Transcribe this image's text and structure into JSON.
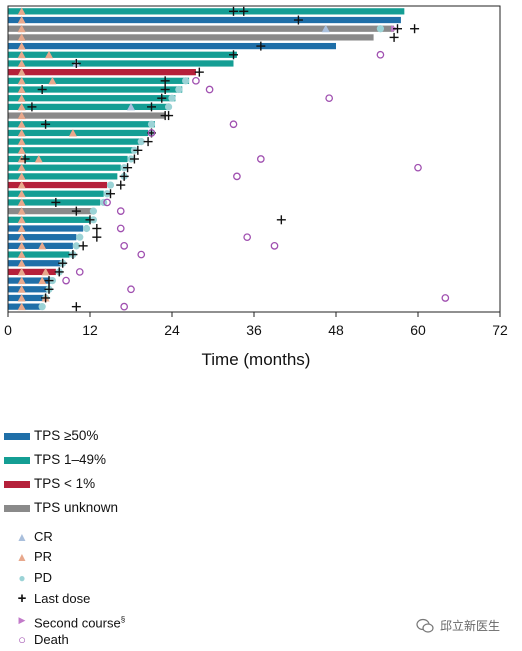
{
  "chart_data": {
    "type": "swimmer",
    "xlabel": "Time (months)",
    "xticks": [
      0,
      12,
      24,
      36,
      48,
      60,
      72
    ],
    "xlim": [
      0,
      72
    ],
    "grid": false,
    "colors": {
      "TPS ≥50%": "#1f6fa8",
      "TPS 1–49%": "#149e94",
      "TPS < 1%": "#b5203a",
      "TPS unknown": "#8a8a8a",
      "CR": "#a9bfdc",
      "PR": "#e8a88c",
      "PD": "#9bd3d6",
      "Last dose": "#111111",
      "Second course": "#c27ac9",
      "Death": "#a050b0"
    },
    "patients": [
      {
        "tps": "TPS 1–49%",
        "duration": 58.0,
        "pr": [
          2.0
        ],
        "last_dose": [
          33.0,
          34.5
        ],
        "death": []
      },
      {
        "tps": "TPS ≥50%",
        "duration": 57.5,
        "pr": [
          2.0
        ],
        "last_dose": [
          42.5
        ],
        "death": []
      },
      {
        "tps": "TPS unknown",
        "duration": 56.5,
        "pr": [
          2.0
        ],
        "cr": [
          46.5
        ],
        "pd": [
          54.5
        ],
        "last_dose": [
          59.5,
          57.0
        ],
        "second_course": [
          56.5
        ],
        "death": []
      },
      {
        "tps": "TPS unknown",
        "duration": 53.5,
        "pr": [
          2.0
        ],
        "last_dose": [
          56.5
        ],
        "death": []
      },
      {
        "tps": "TPS ≥50%",
        "duration": 48.0,
        "pr": [
          2.0
        ],
        "last_dose": [
          37.0
        ],
        "death": []
      },
      {
        "tps": "TPS 1–49%",
        "duration": 33.5,
        "pr": [
          2.0,
          6.0
        ],
        "last_dose": [
          33.0
        ],
        "death": [
          54.5
        ]
      },
      {
        "tps": "TPS 1–49%",
        "duration": 33.0,
        "pr": [
          2.0
        ],
        "cr": [
          10.0
        ],
        "last_dose": [
          10.0
        ],
        "death": []
      },
      {
        "tps": "TPS < 1%",
        "duration": 27.5,
        "pr": [
          2.0
        ],
        "last_dose": [
          28.0
        ],
        "death": []
      },
      {
        "tps": "TPS 1–49%",
        "duration": 26.5,
        "pr": [
          2.0,
          6.5
        ],
        "pd": [
          26.0
        ],
        "last_dose": [
          23.0
        ],
        "death": [
          27.5
        ]
      },
      {
        "tps": "TPS 1–49%",
        "duration": 25.5,
        "pr": [
          2.0
        ],
        "pd": [
          25.0
        ],
        "last_dose": [
          5.0,
          23.0
        ],
        "death": [
          29.5
        ]
      },
      {
        "tps": "TPS 1–49%",
        "duration": 24.5,
        "pr": [
          2.0
        ],
        "pd": [
          24.0
        ],
        "last_dose": [
          22.5
        ],
        "death": [
          47.0
        ]
      },
      {
        "tps": "TPS 1–49%",
        "duration": 23.5,
        "pr": [
          2.0
        ],
        "cr": [
          18.0
        ],
        "pd": [
          23.5
        ],
        "last_dose": [
          3.5,
          21.0
        ],
        "death": []
      },
      {
        "tps": "TPS unknown",
        "duration": 23.0,
        "pr": [
          2.0
        ],
        "last_dose": [
          23.5,
          23.0
        ],
        "death": []
      },
      {
        "tps": "TPS 1–49%",
        "duration": 21.5,
        "pr": [
          2.0
        ],
        "pd": [
          21.0
        ],
        "last_dose": [
          5.5
        ],
        "death": [
          33.0
        ]
      },
      {
        "tps": "TPS 1–49%",
        "duration": 20.5,
        "pr": [
          2.0,
          9.5
        ],
        "pd": [
          21.0
        ],
        "last_dose": [
          21.0
        ],
        "death": [
          21.0
        ]
      },
      {
        "tps": "TPS 1–49%",
        "duration": 19.5,
        "pr": [
          2.0
        ],
        "pd": [
          19.5
        ],
        "last_dose": [
          20.5
        ],
        "death": []
      },
      {
        "tps": "TPS 1–49%",
        "duration": 18.5,
        "pr": [
          2.0
        ],
        "pd": [
          18.5
        ],
        "last_dose": [
          19.0
        ],
        "death": []
      },
      {
        "tps": "TPS 1–49%",
        "duration": 17.5,
        "pr": [
          2.0,
          4.5
        ],
        "pd": [
          18.0
        ],
        "last_dose": [
          2.5,
          18.5
        ],
        "death": [
          37.0
        ]
      },
      {
        "tps": "TPS 1–49%",
        "duration": 16.5,
        "pr": [
          2.0
        ],
        "pd": [
          17.0
        ],
        "last_dose": [
          17.5
        ],
        "death": [
          60.0
        ]
      },
      {
        "tps": "TPS 1–49%",
        "duration": 16.0,
        "pr": [
          2.0
        ],
        "pd": [
          17.0
        ],
        "last_dose": [
          17.0
        ],
        "death": [
          33.5
        ]
      },
      {
        "tps": "TPS < 1%",
        "duration": 14.5,
        "pr": [
          2.0
        ],
        "pd": [
          15.0
        ],
        "last_dose": [
          16.5
        ],
        "death": []
      },
      {
        "tps": "TPS 1–49%",
        "duration": 14.0,
        "pr": [
          2.0
        ],
        "pd": [
          14.5
        ],
        "last_dose": [
          15.0
        ],
        "death": []
      },
      {
        "tps": "TPS 1–49%",
        "duration": 13.5,
        "pr": [
          2.0
        ],
        "pd": [
          14.0
        ],
        "last_dose": [
          7.0
        ],
        "death": [
          14.5
        ]
      },
      {
        "tps": "TPS unknown",
        "duration": 12.5,
        "pr": [
          2.0
        ],
        "pd": [
          12.5
        ],
        "last_dose": [
          10.0
        ],
        "death": [
          16.5
        ]
      },
      {
        "tps": "TPS 1–49%",
        "duration": 12.0,
        "pr": [
          2.0
        ],
        "pd": [
          12.5
        ],
        "last_dose": [
          12.0,
          40.0
        ],
        "death": []
      },
      {
        "tps": "TPS ≥50%",
        "duration": 11.0,
        "pr": [
          2.0
        ],
        "pd": [
          11.5
        ],
        "last_dose": [
          13.0
        ],
        "death": [
          16.5
        ]
      },
      {
        "tps": "TPS ≥50%",
        "duration": 10.0,
        "pr": [
          2.0
        ],
        "pd": [
          10.5
        ],
        "last_dose": [
          13.0
        ],
        "death": [
          35.0
        ]
      },
      {
        "tps": "TPS ≥50%",
        "duration": 9.5,
        "pr": [
          2.0,
          5.0
        ],
        "pd": [
          10.0
        ],
        "last_dose": [
          11.0
        ],
        "death": [
          17.0,
          39.0
        ]
      },
      {
        "tps": "TPS 1–49%",
        "duration": 9.0,
        "pr": [
          2.0
        ],
        "pd": [
          9.5
        ],
        "last_dose": [
          9.5
        ],
        "death": [
          19.5
        ]
      },
      {
        "tps": "TPS ≥50%",
        "duration": 8.0,
        "pr": [
          2.0
        ],
        "pd": [
          8.0
        ],
        "last_dose": [
          8.0
        ],
        "death": []
      },
      {
        "tps": "TPS < 1%",
        "duration": 7.0,
        "pr": [
          2.0,
          5.5
        ],
        "pd": [
          7.5
        ],
        "last_dose": [
          7.5
        ],
        "death": [
          10.5
        ]
      },
      {
        "tps": "TPS ≥50%",
        "duration": 6.5,
        "pr": [
          2.0,
          5.0
        ],
        "pd": [
          6.5
        ],
        "last_dose": [
          6.0
        ],
        "death": [
          8.5
        ]
      },
      {
        "tps": "TPS ≥50%",
        "duration": 6.0,
        "pr": [
          2.0
        ],
        "pd": [
          6.0
        ],
        "last_dose": [
          6.0
        ],
        "death": [
          18.0
        ]
      },
      {
        "tps": "TPS ≥50%",
        "duration": 5.5,
        "pr": [
          2.0,
          5.5
        ],
        "pd": [
          5.5
        ],
        "last_dose": [
          5.5
        ],
        "death": [
          64.0
        ]
      },
      {
        "tps": "TPS ≥50%",
        "duration": 5.0,
        "pr": [
          2.0
        ],
        "pd": [
          5.0
        ],
        "last_dose": [
          10.0
        ],
        "death": [
          17.0
        ]
      }
    ]
  },
  "legend": {
    "tps": [
      {
        "label": "TPS ≥50%",
        "color": "#1f6fa8"
      },
      {
        "label": "TPS 1–49%",
        "color": "#149e94"
      },
      {
        "label": "TPS < 1%",
        "color": "#b5203a"
      },
      {
        "label": "TPS unknown",
        "color": "#8a8a8a"
      }
    ],
    "markers": [
      {
        "label": "CR",
        "symbol": "▲",
        "color": "#a9bfdc"
      },
      {
        "label": "PR",
        "symbol": "▲",
        "color": "#e8a88c"
      },
      {
        "label": "PD",
        "symbol": "●",
        "color": "#9bd3d6"
      },
      {
        "label": "Last dose",
        "symbol": "+",
        "color": "#111111"
      },
      {
        "label": "Second course",
        "label_sup": "§",
        "symbol": "▶",
        "color": "#c27ac9"
      },
      {
        "label": "Death",
        "symbol": "○",
        "color": "#a050b0"
      }
    ]
  },
  "watermark": {
    "text": "邱立新医生",
    "icon": "wechat-icon"
  }
}
